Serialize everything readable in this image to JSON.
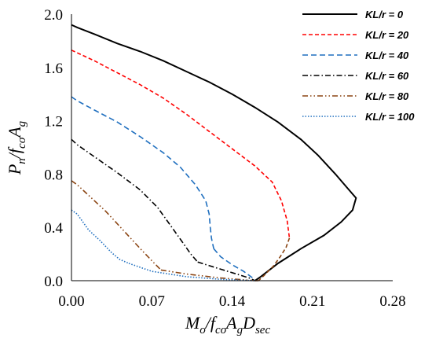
{
  "chart_data": {
    "type": "line",
    "xlabel": "Mo/fcoAgDsec",
    "ylabel": "Pn/fcoAg",
    "xlim": [
      0,
      0.28
    ],
    "ylim": [
      0,
      2.0
    ],
    "xticks": [
      "0.00",
      "0.07",
      "0.14",
      "0.21",
      "0.28"
    ],
    "yticks": [
      "0.0",
      "0.4",
      "0.8",
      "1.2",
      "1.6",
      "2.0"
    ],
    "grid": false,
    "legend_position": "top-right",
    "series": [
      {
        "name": "KL/r = 0",
        "color": "#000000",
        "dash": "solid",
        "points": [
          [
            0,
            1.92
          ],
          [
            0.005,
            1.9
          ],
          [
            0.02,
            1.85
          ],
          [
            0.04,
            1.78
          ],
          [
            0.06,
            1.72
          ],
          [
            0.08,
            1.65
          ],
          [
            0.1,
            1.57
          ],
          [
            0.12,
            1.49
          ],
          [
            0.14,
            1.4
          ],
          [
            0.16,
            1.3
          ],
          [
            0.18,
            1.19
          ],
          [
            0.2,
            1.06
          ],
          [
            0.215,
            0.94
          ],
          [
            0.23,
            0.8
          ],
          [
            0.24,
            0.7
          ],
          [
            0.248,
            0.62
          ],
          [
            0.245,
            0.53
          ],
          [
            0.235,
            0.44
          ],
          [
            0.22,
            0.34
          ],
          [
            0.2,
            0.24
          ],
          [
            0.18,
            0.13
          ],
          [
            0.165,
            0.03
          ],
          [
            0.16,
            0.0
          ]
        ]
      },
      {
        "name": "KL/r = 20",
        "color": "#ff0000",
        "dash": "5,3",
        "points": [
          [
            0,
            1.73
          ],
          [
            0.005,
            1.71
          ],
          [
            0.02,
            1.65
          ],
          [
            0.04,
            1.56
          ],
          [
            0.06,
            1.47
          ],
          [
            0.08,
            1.37
          ],
          [
            0.1,
            1.25
          ],
          [
            0.12,
            1.12
          ],
          [
            0.14,
            0.99
          ],
          [
            0.16,
            0.86
          ],
          [
            0.175,
            0.74
          ],
          [
            0.183,
            0.6
          ],
          [
            0.188,
            0.45
          ],
          [
            0.19,
            0.32
          ]
        ]
      },
      {
        "name": "KL/r = 40",
        "color": "#1f6fbf",
        "dash": "7,4",
        "points": [
          [
            0,
            1.38
          ],
          [
            0.005,
            1.35
          ],
          [
            0.02,
            1.28
          ],
          [
            0.04,
            1.19
          ],
          [
            0.06,
            1.08
          ],
          [
            0.08,
            0.96
          ],
          [
            0.095,
            0.85
          ],
          [
            0.108,
            0.72
          ],
          [
            0.117,
            0.6
          ],
          [
            0.12,
            0.5
          ],
          [
            0.121,
            0.4
          ],
          [
            0.122,
            0.32
          ],
          [
            0.124,
            0.24
          ]
        ]
      },
      {
        "name": "KL/r = 60",
        "color": "#000000",
        "dash": "7,3,1.5,3",
        "points": [
          [
            0,
            1.06
          ],
          [
            0.005,
            1.02
          ],
          [
            0.02,
            0.93
          ],
          [
            0.04,
            0.81
          ],
          [
            0.06,
            0.68
          ],
          [
            0.075,
            0.55
          ],
          [
            0.085,
            0.43
          ],
          [
            0.095,
            0.31
          ],
          [
            0.104,
            0.2
          ],
          [
            0.11,
            0.14
          ]
        ]
      },
      {
        "name": "KL/r = 80",
        "color": "#8b4513",
        "dash": "7,3,1.5,3,1.5,3",
        "points": [
          [
            0,
            0.75
          ],
          [
            0.005,
            0.72
          ],
          [
            0.015,
            0.64
          ],
          [
            0.03,
            0.52
          ],
          [
            0.045,
            0.38
          ],
          [
            0.06,
            0.24
          ],
          [
            0.07,
            0.15
          ],
          [
            0.078,
            0.08
          ]
        ]
      },
      {
        "name": "KL/r = 100",
        "color": "#1f6fbf",
        "dash": "1.5,2",
        "points": [
          [
            0,
            0.53
          ],
          [
            0.005,
            0.5
          ],
          [
            0.015,
            0.38
          ],
          [
            0.025,
            0.3
          ],
          [
            0.035,
            0.21
          ],
          [
            0.042,
            0.16
          ],
          [
            0.05,
            0.13
          ]
        ]
      }
    ],
    "tails": [
      {
        "series_index": 1,
        "color": "#8b4513",
        "dash": "5,3",
        "points": [
          [
            0.19,
            0.32
          ],
          [
            0.187,
            0.25
          ],
          [
            0.182,
            0.18
          ],
          [
            0.176,
            0.11
          ],
          [
            0.168,
            0.04
          ],
          [
            0.163,
            0.0
          ]
        ]
      },
      {
        "series_index": 1,
        "color": "#8b4513",
        "dash": "5,3",
        "points": [
          [
            0.16,
            0.0
          ],
          [
            0.163,
            0.0
          ]
        ]
      },
      {
        "series_index": 2,
        "color": "#1f6fbf",
        "dash": "7,4",
        "points": [
          [
            0.124,
            0.24
          ],
          [
            0.13,
            0.18
          ],
          [
            0.14,
            0.12
          ],
          [
            0.15,
            0.07
          ],
          [
            0.158,
            0.02
          ],
          [
            0.16,
            0.0
          ]
        ]
      },
      {
        "series_index": 3,
        "color": "#000000",
        "dash": "7,3,1.5,3",
        "points": [
          [
            0.11,
            0.14
          ],
          [
            0.125,
            0.1
          ],
          [
            0.14,
            0.06
          ],
          [
            0.155,
            0.02
          ],
          [
            0.16,
            0.0
          ]
        ]
      },
      {
        "series_index": 4,
        "color": "#8b4513",
        "dash": "7,3,1.5,3,1.5,3",
        "points": [
          [
            0.078,
            0.08
          ],
          [
            0.1,
            0.05
          ],
          [
            0.13,
            0.02
          ],
          [
            0.16,
            0.0
          ]
        ]
      },
      {
        "series_index": 5,
        "color": "#1f6fbf",
        "dash": "1.5,2",
        "points": [
          [
            0.05,
            0.13
          ],
          [
            0.07,
            0.07
          ],
          [
            0.1,
            0.03
          ],
          [
            0.13,
            0.01
          ],
          [
            0.16,
            0.0
          ]
        ]
      }
    ]
  }
}
